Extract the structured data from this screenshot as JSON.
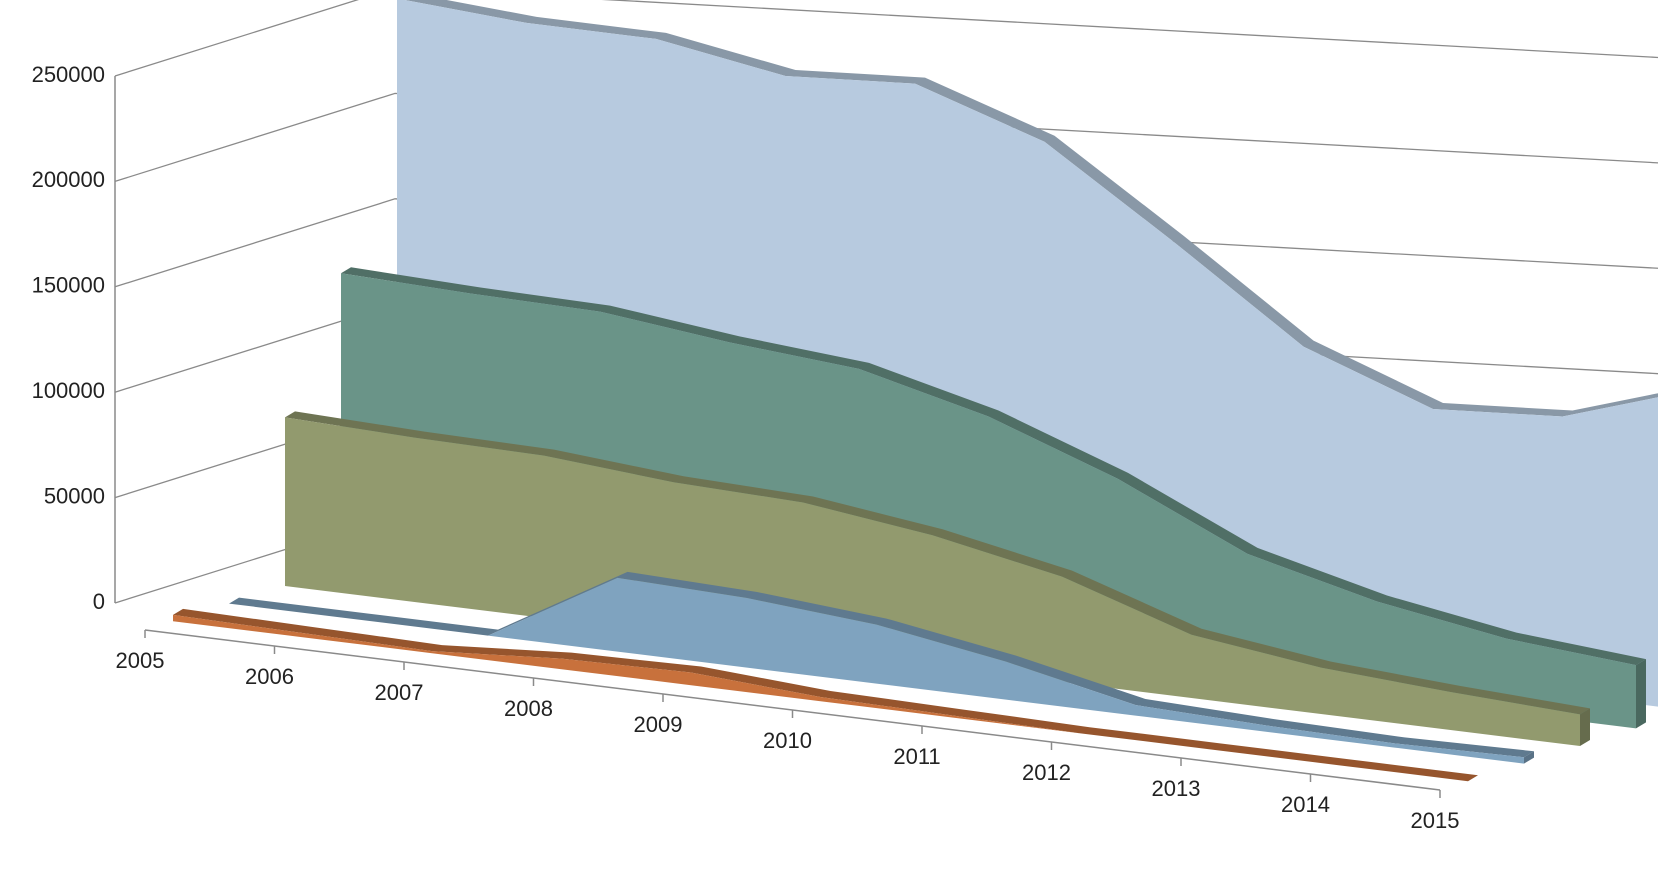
{
  "chart_data": {
    "type": "area3d",
    "categories": [
      "2005",
      "2006",
      "2007",
      "2008",
      "2009",
      "2010",
      "2011",
      "2012",
      "2013",
      "2014",
      "2015"
    ],
    "series": [
      {
        "color": "#c8713c",
        "values": [
          3000,
          2000,
          1000,
          5000,
          6000,
          2000,
          1000,
          0,
          0,
          0,
          0
        ]
      },
      {
        "color": "#7fa3bf",
        "values": [
          0,
          0,
          0,
          35000,
          33000,
          28000,
          18000,
          5000,
          3000,
          2000,
          3000
        ]
      },
      {
        "color": "#929a6e",
        "values": [
          80000,
          78000,
          77000,
          72000,
          70000,
          62000,
          50000,
          30000,
          22000,
          18000,
          15000
        ]
      },
      {
        "color": "#6a9488",
        "values": [
          140000,
          138000,
          137000,
          130000,
          125000,
          110000,
          88000,
          60000,
          45000,
          35000,
          30000
        ]
      },
      {
        "color": "#b7cadf",
        "values": [
          262000,
          258000,
          258000,
          248000,
          252000,
          232000,
          192000,
          150000,
          128000,
          132000,
          152000
        ]
      }
    ],
    "ylim": [
      0,
      250000
    ],
    "yticks": [
      0,
      50000,
      100000,
      150000,
      200000,
      250000
    ],
    "grid": true
  }
}
